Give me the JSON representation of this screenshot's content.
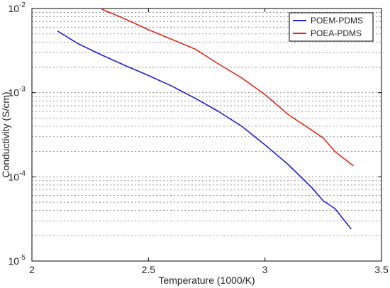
{
  "chart_data": {
    "type": "line",
    "title": "",
    "xlabel": "Temperature (1000/K)",
    "ylabel": "Conductivity (S/cm)",
    "xlim": [
      2,
      3.5
    ],
    "ylim": [
      1e-05,
      0.01
    ],
    "y_scale": "log",
    "grid": "y-major-and-minor",
    "legend_position": "top-right",
    "x_ticks": [
      {
        "value": 2,
        "label": "2"
      },
      {
        "value": 2.5,
        "label": "2.5"
      },
      {
        "value": 3,
        "label": "3"
      },
      {
        "value": 3.5,
        "label": "3.5"
      }
    ],
    "y_ticks": [
      {
        "value": 1e-05,
        "base": "10",
        "exp": "-5"
      },
      {
        "value": 0.0001,
        "base": "10",
        "exp": "-4"
      },
      {
        "value": 0.001,
        "base": "10",
        "exp": "-3"
      },
      {
        "value": 0.01,
        "base": "10",
        "exp": "-2"
      }
    ],
    "series": [
      {
        "name": "POEM-PDMS",
        "color": "#1f1fd6",
        "x": [
          2.11,
          2.2,
          2.3,
          2.4,
          2.5,
          2.6,
          2.7,
          2.8,
          2.9,
          3.0,
          3.1,
          3.2,
          3.25,
          3.3,
          3.37
        ],
        "y": [
          0.0054,
          0.0038,
          0.0028,
          0.0021,
          0.0016,
          0.0012,
          0.00086,
          0.0006,
          0.0004,
          0.00024,
          0.00014,
          7.5e-05,
          5.2e-05,
          4.2e-05,
          2.4e-05
        ]
      },
      {
        "name": "POEA-PDMS",
        "color": "#e0281b",
        "x": [
          2.3,
          2.4,
          2.5,
          2.6,
          2.7,
          2.8,
          2.9,
          3.0,
          3.1,
          3.2,
          3.25,
          3.3,
          3.38
        ],
        "y": [
          0.0098,
          0.0075,
          0.0056,
          0.0043,
          0.0033,
          0.0022,
          0.0015,
          0.00095,
          0.00055,
          0.00036,
          0.00029,
          0.0002,
          0.000135
        ]
      }
    ]
  }
}
